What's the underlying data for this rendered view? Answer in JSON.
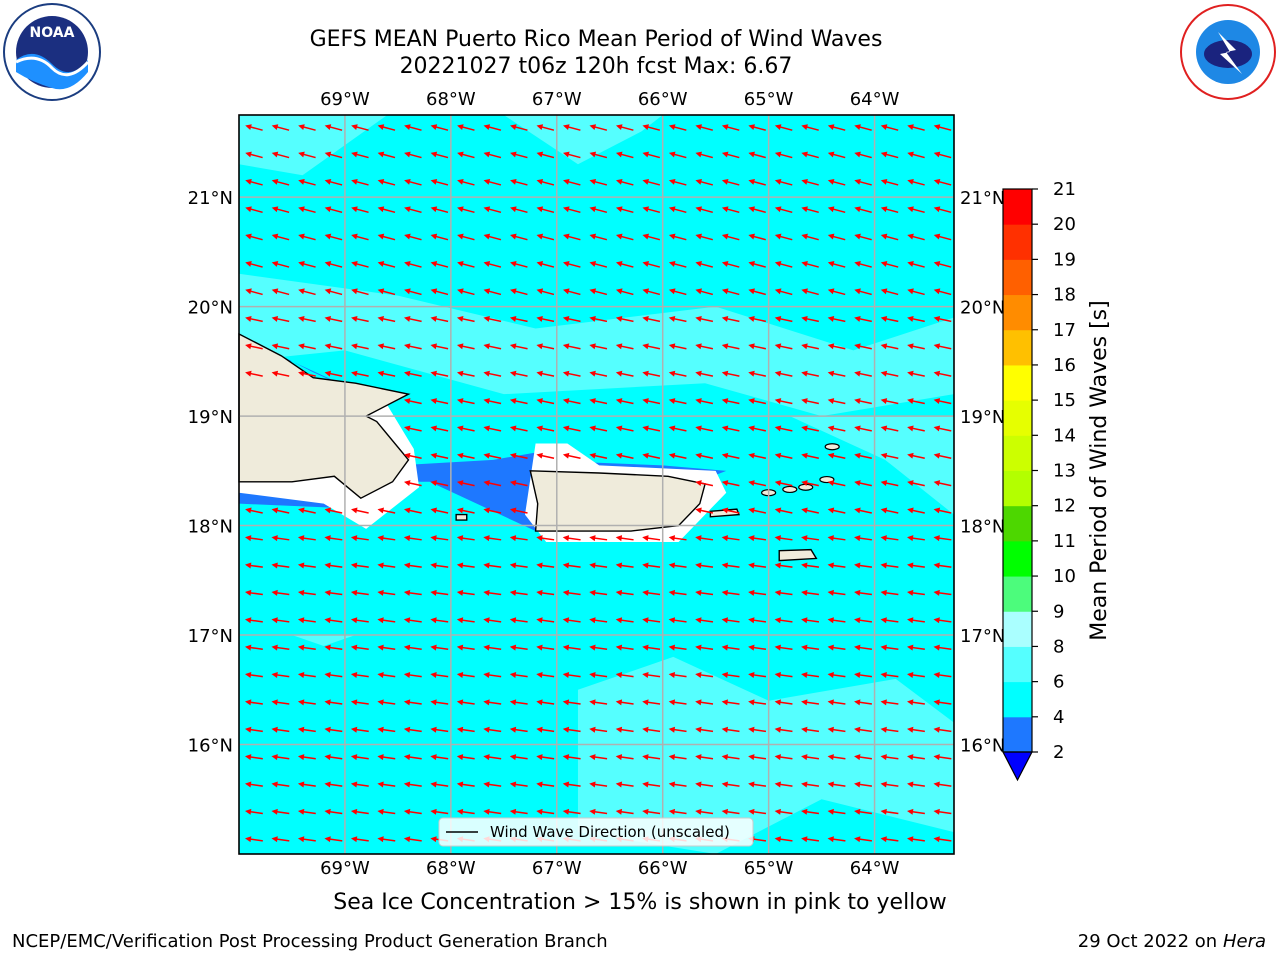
{
  "header": {
    "title_line1": "GEFS MEAN Puerto Rico Mean Period of Wind Waves",
    "title_line2": "20221027 t06z 120h fcst   Max: 6.67"
  },
  "logos": {
    "left": "noaa-logo",
    "left_text": "NOAA",
    "right": "nws-logo"
  },
  "map": {
    "lon_ticks": [
      "69°W",
      "68°W",
      "67°W",
      "66°W",
      "65°W",
      "64°W"
    ],
    "lat_ticks": [
      "21°N",
      "20°N",
      "19°N",
      "18°N",
      "17°N",
      "16°N"
    ],
    "lon_range": [
      -70.0,
      -63.25
    ],
    "lat_range": [
      15.0,
      21.75
    ],
    "legend_label": "Wind Wave Direction (unscaled)",
    "arrow_color": "#ff0000",
    "land_color": "#efebdb",
    "ocean_color": "#00ffff"
  },
  "colorbar": {
    "label": "Mean Period of Wind Waves [s]",
    "ticks": [
      "2",
      "4",
      "6",
      "8",
      "9",
      "10",
      "11",
      "12",
      "13",
      "14",
      "15",
      "16",
      "17",
      "18",
      "19",
      "20",
      "21"
    ],
    "colors": [
      "#0000ff",
      "#1e78ff",
      "#00ffff",
      "#55ffff",
      "#aaffff",
      "#4cfc7c",
      "#00ff00",
      "#4dd700",
      "#b3ff00",
      "#ccff00",
      "#e6ff00",
      "#ffff00",
      "#ffc000",
      "#ff8c00",
      "#ff6000",
      "#ff3000",
      "#ff0000"
    ]
  },
  "note": "Sea Ice Concentration > 15% is shown in pink to yellow",
  "footer": {
    "left": "NCEP/EMC/Verification Post Processing Product Generation Branch",
    "right_prefix": "29 Oct 2022 on ",
    "right_host": "Hera"
  }
}
